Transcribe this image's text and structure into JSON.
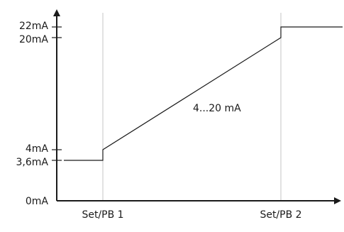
{
  "chart_data": {
    "type": "line",
    "x_categories": [
      "Set/PB 1",
      "Set/PB 2"
    ],
    "y_ticks": [
      {
        "label": "0mA",
        "value": 0
      },
      {
        "label": "3,6mA",
        "value": 3.6
      },
      {
        "label": "4mA",
        "value": 4
      },
      {
        "label": "20mA",
        "value": 20
      },
      {
        "label": "22mA",
        "value": 22
      }
    ],
    "ylim": [
      0,
      24
    ],
    "series": [
      {
        "name": "4...20 mA",
        "points": [
          {
            "x": 0,
            "y": 3.6
          },
          {
            "x": 1,
            "y": 3.6
          },
          {
            "x": 1,
            "y": 4
          },
          {
            "x": 2,
            "y": 20
          },
          {
            "x": 2,
            "y": 22
          },
          {
            "x": 3,
            "y": 22
          }
        ]
      }
    ],
    "grid": false,
    "colors": {
      "line": "#1a1a1a",
      "guide": "#b8b8b8"
    }
  }
}
